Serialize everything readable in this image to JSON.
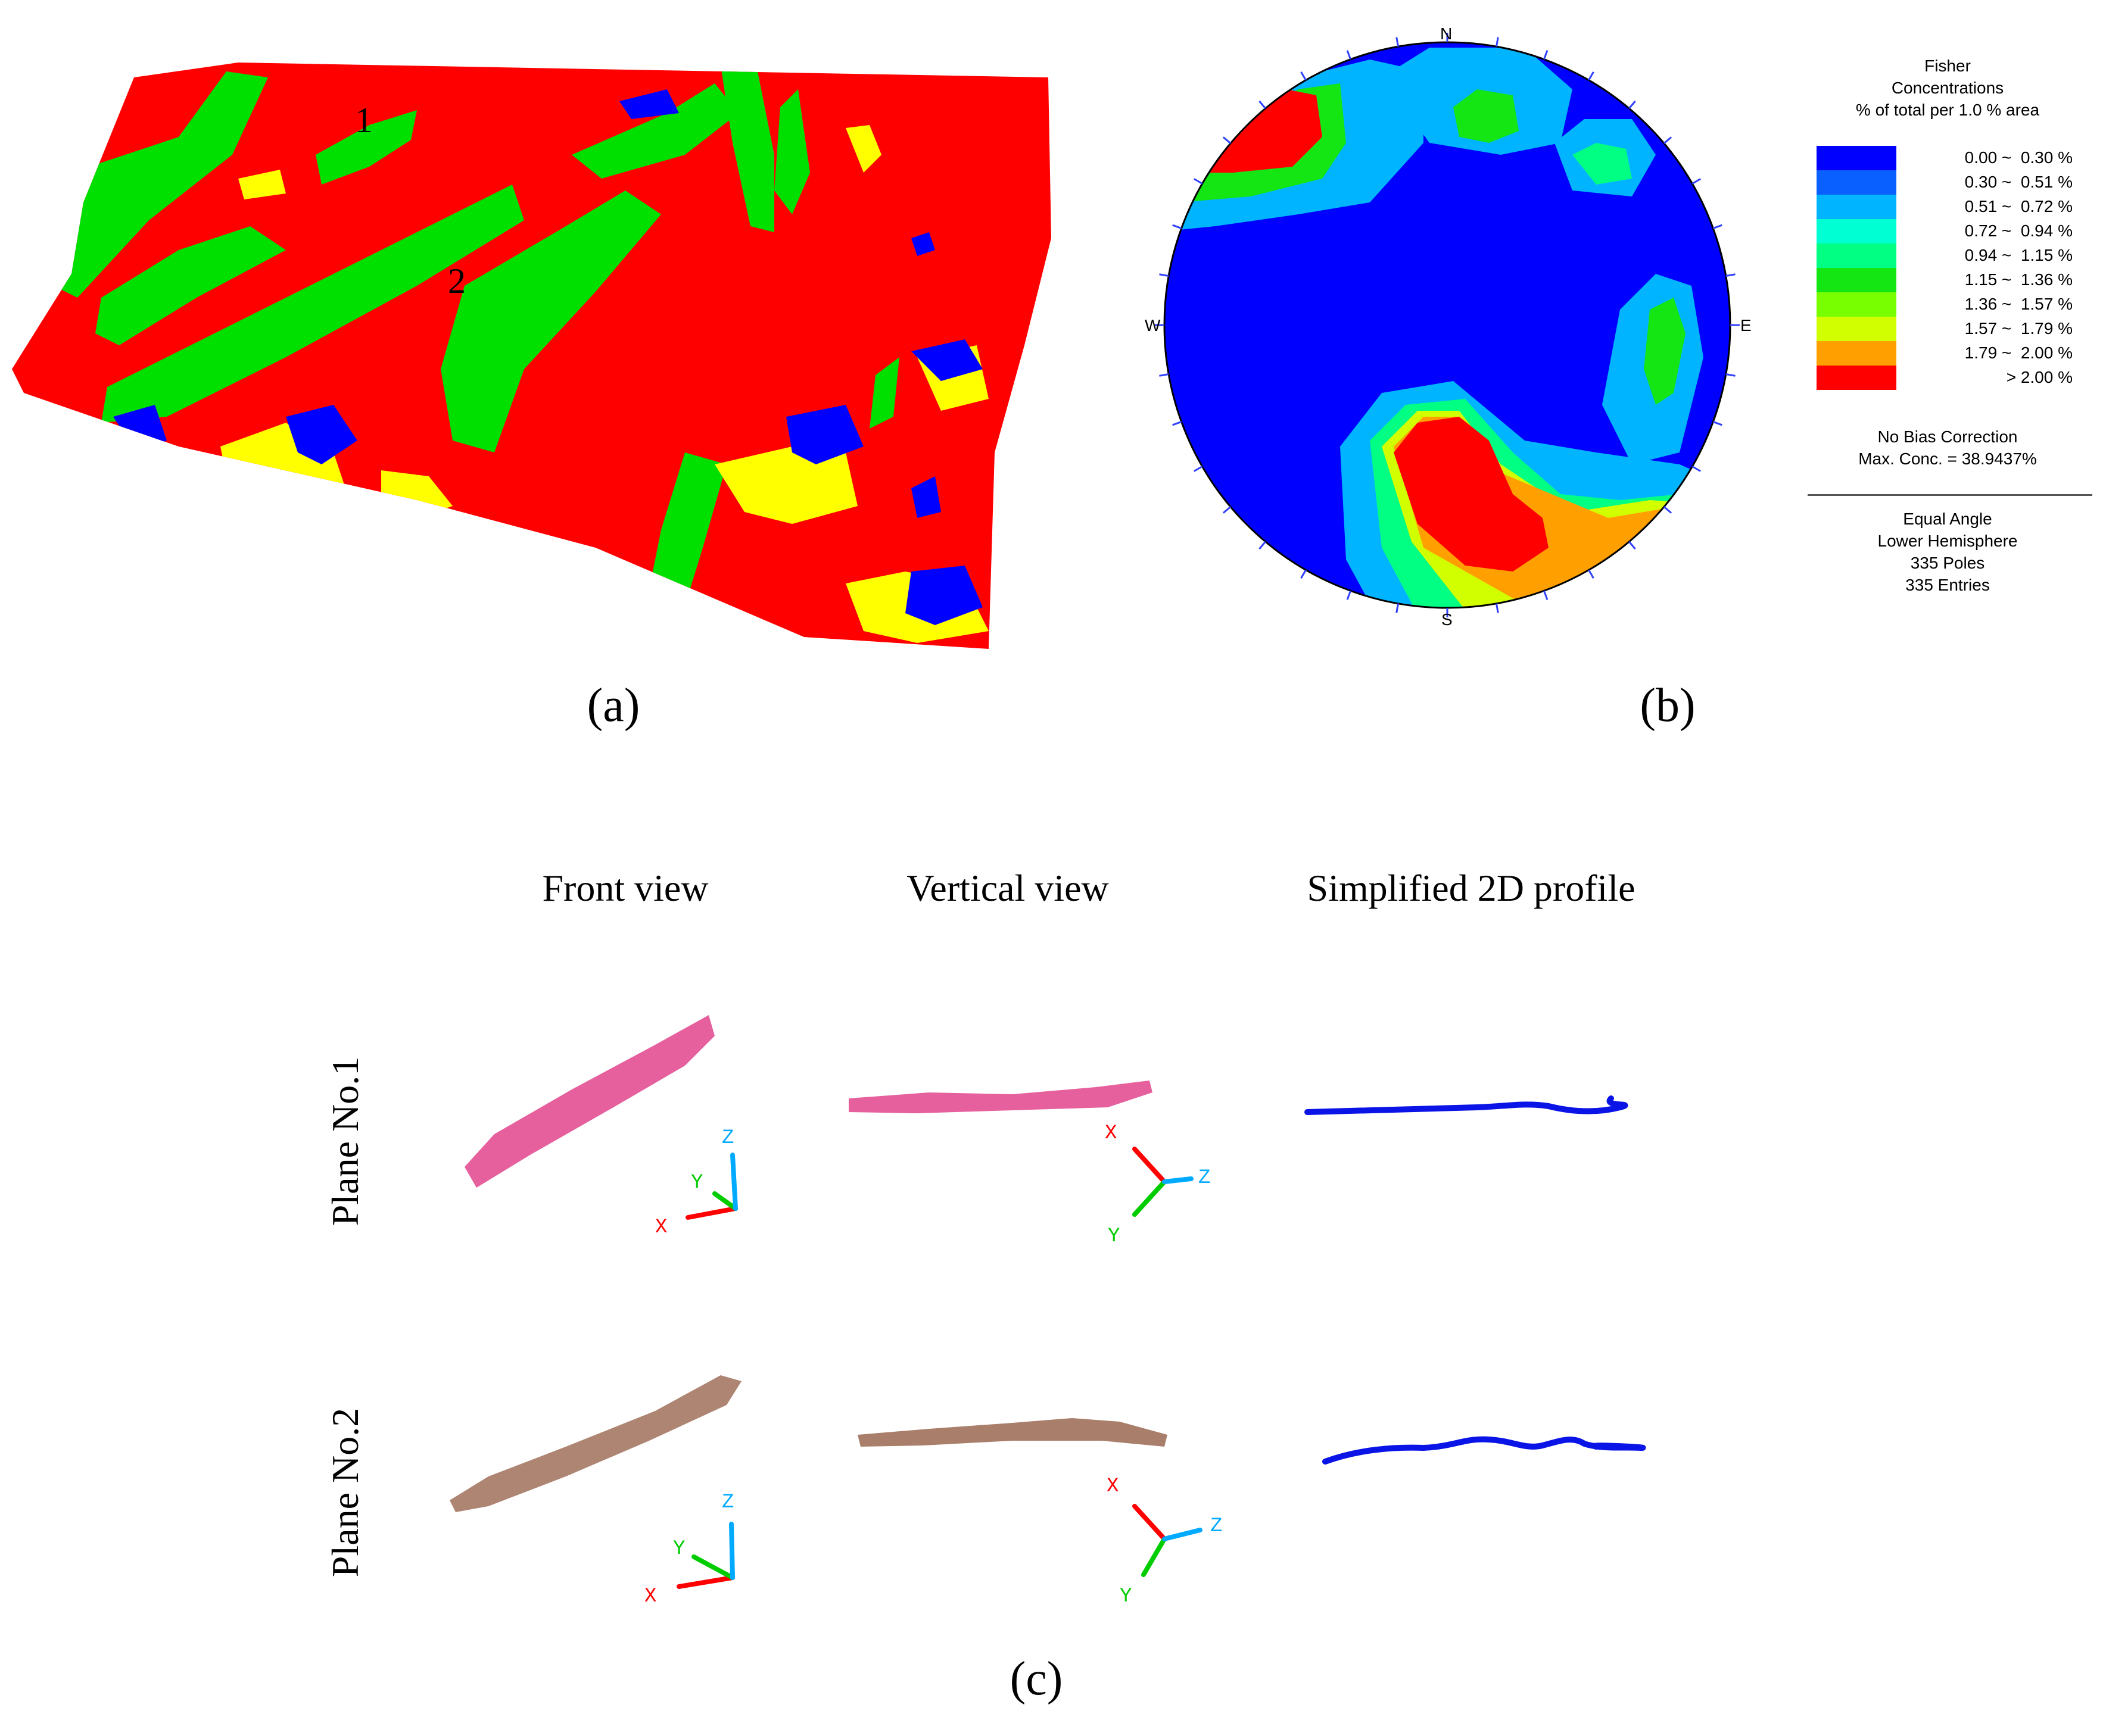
{
  "panel_a": {
    "caption": "(a)",
    "plane_markers": [
      "1",
      "2"
    ],
    "colors": {
      "red": "#ff0000",
      "green": "#00e000",
      "yellow": "#ffff00",
      "blue": "#0000ff"
    }
  },
  "panel_b": {
    "caption": "(b)",
    "compass": {
      "north": "N",
      "south": "S",
      "east": "E",
      "west": "W"
    },
    "legend": {
      "title_lines": [
        "Fisher",
        "Concentrations",
        "% of total per 1.0 % area"
      ],
      "entries": [
        {
          "range": "0.00 ~  0.30 %",
          "color": "#0000ff"
        },
        {
          "range": "0.30 ~  0.51 %",
          "color": "#0a5fff"
        },
        {
          "range": "0.51 ~  0.72 %",
          "color": "#00b4ff"
        },
        {
          "range": "0.72 ~  0.94 %",
          "color": "#00ffd2"
        },
        {
          "range": "0.94 ~  1.15 %",
          "color": "#00ff82"
        },
        {
          "range": "1.15 ~  1.36 %",
          "color": "#14e614"
        },
        {
          "range": "1.36 ~  1.57 %",
          "color": "#78ff00"
        },
        {
          "range": "1.57 ~  1.79 %",
          "color": "#d2ff00"
        },
        {
          "range": "1.79 ~  2.00 %",
          "color": "#ffa000"
        },
        {
          "range": "> 2.00 %",
          "color": "#ff0000"
        }
      ],
      "correction_lines": [
        "No Bias Correction",
        "Max. Conc. = 38.9437%"
      ],
      "projection_lines": [
        "Equal Angle",
        "Lower Hemisphere",
        "335 Poles",
        "335 Entries"
      ]
    }
  },
  "panel_c": {
    "caption": "(c)",
    "column_headings": [
      "Front view",
      "Vertical view",
      "Simplified 2D profile"
    ],
    "row_labels": [
      "Plane No.1",
      "Plane No.2"
    ],
    "axis_labels": {
      "x": "X",
      "y": "Y",
      "z": "Z"
    },
    "colors": {
      "plane1_points": "#e0448c",
      "plane2_points": "#a0705a",
      "profile": "#0a14e6",
      "axis_x": "#ff0000",
      "axis_y": "#00cc00",
      "axis_z": "#00aaff"
    }
  }
}
